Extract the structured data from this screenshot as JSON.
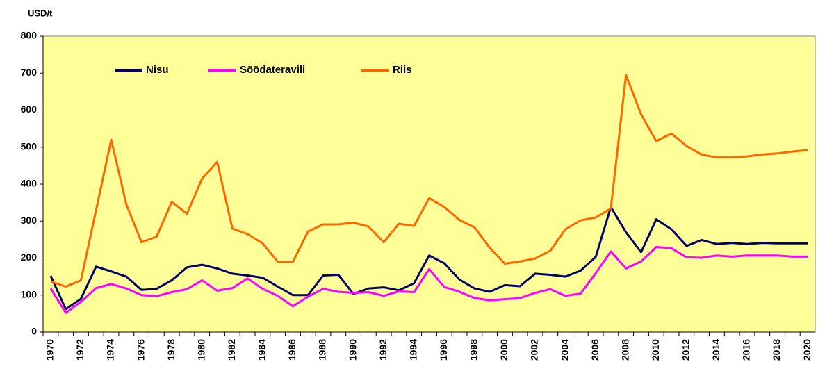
{
  "chart_data": {
    "type": "line",
    "y_label": "USD/t",
    "categories": [
      "1970",
      null,
      "1972",
      null,
      "1974",
      null,
      "1976",
      null,
      "1978",
      null,
      "1980",
      null,
      "1982",
      null,
      "1984",
      null,
      "1986",
      null,
      "1988",
      null,
      "1990",
      null,
      "1992",
      null,
      "1994",
      null,
      "1996",
      null,
      "1998",
      null,
      "2000",
      null,
      "2002",
      null,
      "2004",
      null,
      "2006",
      null,
      "2008",
      null,
      "2010",
      null,
      "2012",
      null,
      "2014",
      null,
      "2016",
      null,
      "2018",
      null,
      "2020"
    ],
    "series": [
      {
        "name": "Nisu",
        "color": "#000066",
        "values": [
          152,
          62,
          90,
          177,
          164,
          150,
          114,
          117,
          140,
          175,
          182,
          172,
          158,
          153,
          147,
          123,
          100,
          100,
          153,
          155,
          103,
          118,
          121,
          113,
          132,
          207,
          186,
          142,
          118,
          109,
          127,
          124,
          158,
          155,
          150,
          166,
          203,
          338,
          270,
          216,
          305,
          278,
          233,
          249,
          238,
          241,
          238,
          241,
          240,
          240,
          240
        ]
      },
      {
        "name": "Söödateravili",
        "color": "#ff00ff",
        "values": [
          118,
          52,
          82,
          119,
          130,
          118,
          100,
          97,
          108,
          116,
          140,
          112,
          119,
          145,
          117,
          98,
          70,
          96,
          117,
          109,
          106,
          108,
          98,
          110,
          108,
          170,
          122,
          109,
          92,
          86,
          89,
          92,
          106,
          116,
          98,
          104,
          159,
          218,
          172,
          191,
          230,
          227,
          202,
          201,
          207,
          204,
          207,
          207,
          207,
          204,
          204
        ]
      },
      {
        "name": "Riis",
        "color": "#ff6600",
        "values": [
          137,
          123,
          140,
          330,
          520,
          345,
          243,
          258,
          352,
          320,
          415,
          460,
          280,
          265,
          240,
          190,
          190,
          272,
          291,
          291,
          296,
          285,
          243,
          293,
          287,
          362,
          338,
          303,
          283,
          228,
          185,
          191,
          199,
          220,
          278,
          302,
          310,
          334,
          695,
          588,
          516,
          537,
          503,
          480,
          472,
          472,
          475,
          480,
          483,
          488,
          492
        ]
      }
    ],
    "ylim": [
      0,
      800
    ],
    "yticks": [
      0,
      100,
      200,
      300,
      400,
      500,
      600,
      700,
      800
    ],
    "background": "#ffff99"
  }
}
